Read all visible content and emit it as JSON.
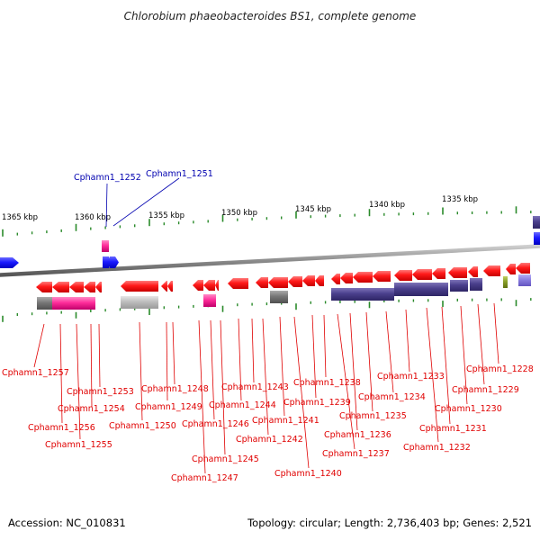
{
  "title": "Chlorobium phaeobacteroides BS1, complete genome",
  "accession": "Accession: NC_010831",
  "summary": "Topology: circular; Length: 2,736,403 bp; Genes: 2,521",
  "colors": {
    "backbone": "#8c8c8c",
    "tick": "#2a8a2a",
    "gene_red": "#ff1a1a",
    "gene_blue": "#1a1aff",
    "gene_pink": "#ff2d9a",
    "gene_navy": "#4a3f8c",
    "gene_violet": "#8a7ee0",
    "gene_gray": "#777777",
    "gene_lightgray": "#bdbdbd",
    "gene_olive": "#8aa02a",
    "label_red": "#e00000",
    "label_blue": "#0000b0"
  },
  "scale": {
    "unit": "kbp",
    "labels": [
      {
        "text": "1365 kbp"
      },
      {
        "text": "1360 kbp"
      },
      {
        "text": "1355 kbp"
      },
      {
        "text": "1350 kbp"
      },
      {
        "text": "1345 kbp"
      },
      {
        "text": "1340 kbp"
      },
      {
        "text": "1335 kbp"
      }
    ]
  },
  "labels_top": [
    {
      "text": "Cphamn1_1252"
    },
    {
      "text": "Cphamn1_1251"
    }
  ],
  "labels_bottom": [
    {
      "text": "Cphamn1_1257"
    },
    {
      "text": "Cphamn1_1256"
    },
    {
      "text": "Cphamn1_1255"
    },
    {
      "text": "Cphamn1_1254"
    },
    {
      "text": "Cphamn1_1253"
    },
    {
      "text": "Cphamn1_1250"
    },
    {
      "text": "Cphamn1_1249"
    },
    {
      "text": "Cphamn1_1248"
    },
    {
      "text": "Cphamn1_1247"
    },
    {
      "text": "Cphamn1_1246"
    },
    {
      "text": "Cphamn1_1245"
    },
    {
      "text": "Cphamn1_1244"
    },
    {
      "text": "Cphamn1_1243"
    },
    {
      "text": "Cphamn1_1242"
    },
    {
      "text": "Cphamn1_1241"
    },
    {
      "text": "Cphamn1_1240"
    },
    {
      "text": "Cphamn1_1239"
    },
    {
      "text": "Cphamn1_1238"
    },
    {
      "text": "Cphamn1_1237"
    },
    {
      "text": "Cphamn1_1236"
    },
    {
      "text": "Cphamn1_1235"
    },
    {
      "text": "Cphamn1_1234"
    },
    {
      "text": "Cphamn1_1233"
    },
    {
      "text": "Cphamn1_1232"
    },
    {
      "text": "Cphamn1_1231"
    },
    {
      "text": "Cphamn1_1230"
    },
    {
      "text": "Cphamn1_1229"
    },
    {
      "text": "Cphamn1_1228"
    }
  ]
}
